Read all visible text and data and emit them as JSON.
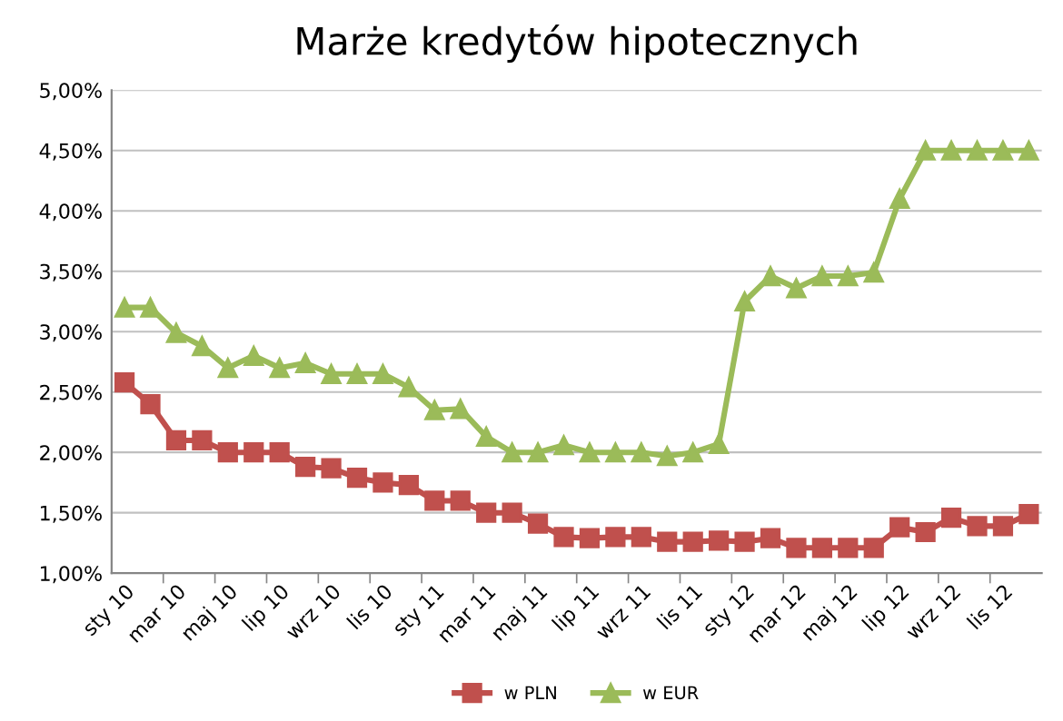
{
  "chart_data": {
    "type": "line",
    "title": "Marże kredytów hipotecznych",
    "categories": [
      "sty 10",
      null,
      "mar 10",
      null,
      "maj 10",
      null,
      "lip 10",
      null,
      "wrz 10",
      null,
      "lis 10",
      null,
      "sty 11",
      null,
      "mar 11",
      null,
      "maj 11",
      null,
      "lip 11",
      null,
      "wrz 11",
      null,
      "lis 11",
      null,
      "sty 12",
      null,
      "mar 12",
      null,
      "maj 12",
      null,
      "lip 12",
      null,
      "wrz 12",
      null,
      "lis 12",
      null
    ],
    "series": [
      {
        "name": "w PLN",
        "color": "#c0504d",
        "marker": "square",
        "values": [
          2.58,
          2.4,
          2.1,
          2.1,
          2.0,
          2.0,
          2.0,
          1.88,
          1.87,
          1.79,
          1.75,
          1.73,
          1.6,
          1.6,
          1.5,
          1.5,
          1.41,
          1.3,
          1.29,
          1.3,
          1.3,
          1.26,
          1.26,
          1.27,
          1.26,
          1.29,
          1.21,
          1.21,
          1.21,
          1.21,
          1.38,
          1.34,
          1.46,
          1.39,
          1.39,
          1.49
        ]
      },
      {
        "name": "w EUR",
        "color": "#9bbb59",
        "marker": "triangle",
        "values": [
          3.2,
          3.2,
          2.99,
          2.88,
          2.7,
          2.8,
          2.7,
          2.74,
          2.65,
          2.65,
          2.65,
          2.54,
          2.35,
          2.36,
          2.13,
          2.0,
          2.0,
          2.06,
          2.0,
          2.0,
          2.0,
          1.97,
          2.0,
          2.07,
          3.25,
          3.46,
          3.36,
          3.46,
          3.46,
          3.49,
          4.1,
          4.5,
          4.5,
          4.5,
          4.5,
          4.5
        ]
      }
    ],
    "ylim": [
      1.0,
      5.0
    ],
    "yticks": [
      {
        "value": 1.0,
        "label": "1,00%"
      },
      {
        "value": 1.5,
        "label": "1,50%"
      },
      {
        "value": 2.0,
        "label": "2,00%"
      },
      {
        "value": 2.5,
        "label": "2,50%"
      },
      {
        "value": 3.0,
        "label": "3,00%"
      },
      {
        "value": 3.5,
        "label": "3,50%"
      },
      {
        "value": 4.0,
        "label": "4,00%"
      },
      {
        "value": 4.5,
        "label": "4,50%"
      },
      {
        "value": 5.0,
        "label": "5,00%"
      }
    ],
    "grid": "y",
    "legend": "bottom",
    "line_style": "solid"
  }
}
